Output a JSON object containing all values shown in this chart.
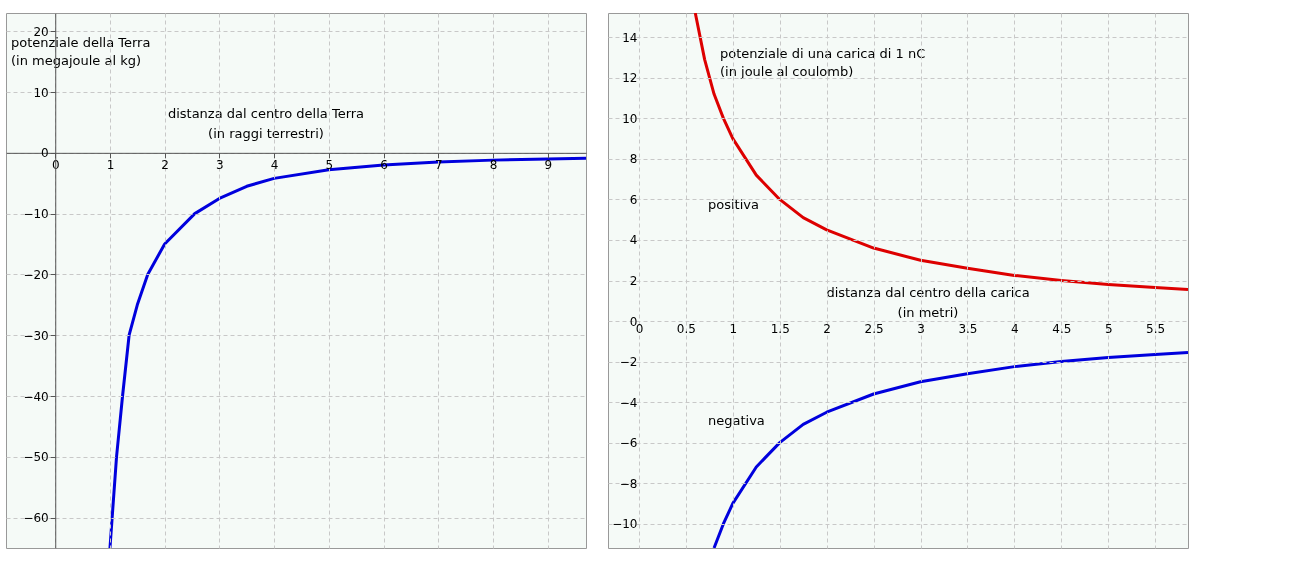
{
  "chart_data": [
    {
      "type": "line",
      "xlabel": "distanza dal centro della Terra\n(in raggi terrestri)",
      "ylabel": "potenziale della Terra\n(in megajoule al kg)",
      "x": [
        1.0,
        1.04,
        1.12,
        1.23,
        1.35,
        1.5,
        1.69,
        2.0,
        2.55,
        3.0,
        3.5,
        4.0,
        5.0,
        6.0,
        7.0,
        8.0,
        9.0,
        9.7
      ],
      "series": [
        {
          "color": "#0000dd",
          "values": [
            -65,
            -60,
            -50,
            -40,
            -30,
            -25,
            -20,
            -15,
            -10,
            -7.5,
            -5.5,
            -4.2,
            -2.8,
            -2.0,
            -1.5,
            -1.2,
            -1.0,
            -0.9
          ]
        }
      ],
      "xlim": [
        -0.9,
        9.7
      ],
      "ylim": [
        -65,
        23
      ],
      "xticks": [
        0,
        1,
        2,
        3,
        4,
        5,
        6,
        7,
        8,
        9
      ],
      "yticks": [
        -60,
        -50,
        -40,
        -30,
        -20,
        -10,
        0,
        10,
        20
      ],
      "grid": true
    },
    {
      "type": "line",
      "xlabel": "distanza dal centro della carica\n(in metri)",
      "ylabel": "potenziale di una carica di 1 nC\n(in joule al coulomb)",
      "series": [
        {
          "name": "positiva",
          "color": "#dd0000",
          "x": [
            0.6,
            0.7,
            0.8,
            0.9,
            1.0,
            1.25,
            1.5,
            1.75,
            2.0,
            2.5,
            3.0,
            3.5,
            4.0,
            4.5,
            5.0,
            5.5,
            5.85
          ],
          "values": [
            15.2,
            12.9,
            11.2,
            10,
            9,
            7.2,
            6,
            5.1,
            4.5,
            3.6,
            3,
            2.6,
            2.25,
            2,
            1.8,
            1.65,
            1.55
          ]
        },
        {
          "name": "negativa",
          "color": "#0000dd",
          "x": [
            0.8,
            0.9,
            1.0,
            1.25,
            1.5,
            1.75,
            2.0,
            2.5,
            3.0,
            3.5,
            4.0,
            4.5,
            5.0,
            5.5,
            5.85
          ],
          "values": [
            -11.2,
            -10,
            -9,
            -7.2,
            -6,
            -5.1,
            -4.5,
            -3.6,
            -3,
            -2.6,
            -2.25,
            -2,
            -1.8,
            -1.65,
            -1.55
          ]
        }
      ],
      "xlim": [
        -0.33,
        5.85
      ],
      "ylim": [
        -11.2,
        15.2
      ],
      "xticks": [
        0,
        0.5,
        1,
        1.5,
        2,
        2.5,
        3,
        3.5,
        4,
        4.5,
        5,
        5.5
      ],
      "yticks": [
        -10,
        -8,
        -6,
        -4,
        -2,
        0,
        2,
        4,
        6,
        8,
        10,
        12,
        14
      ],
      "grid": true
    }
  ]
}
